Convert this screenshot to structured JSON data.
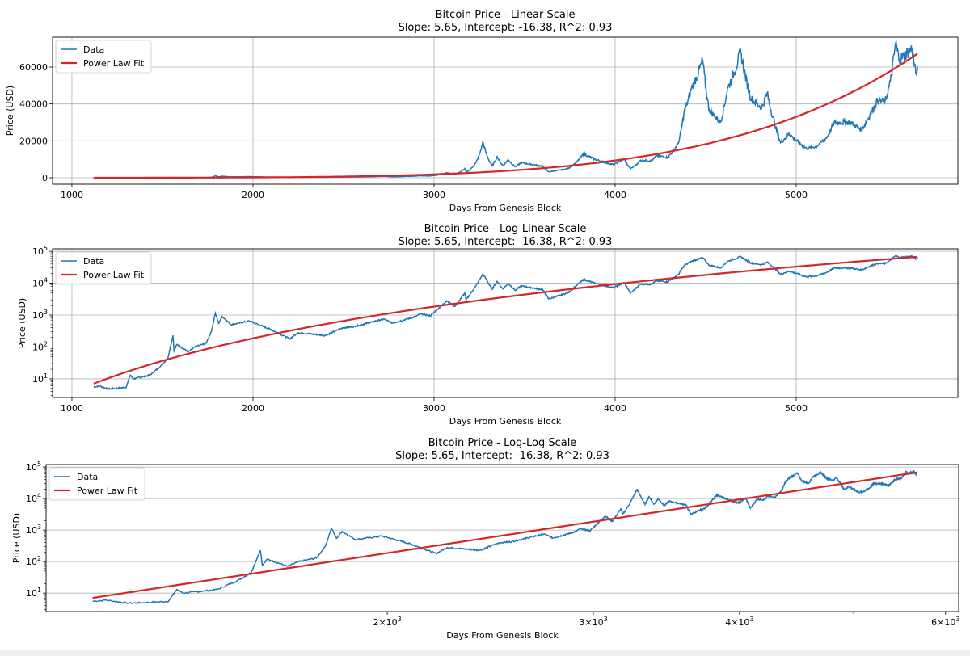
{
  "colors": {
    "data": "#1f77b4",
    "fit": "#d62728",
    "grid": "#b0b0b0"
  },
  "chart_data": {
    "type": "line",
    "fit": {
      "slope": 5.65,
      "intercept": -16.38,
      "r2": 0.93,
      "model": "log10(price) = slope*log10(days) + intercept"
    },
    "legend": [
      "Data",
      "Power Law Fit"
    ],
    "legend_placement": "top-left",
    "series_keypoints": {
      "name": "Data",
      "days": [
        1120,
        1150,
        1200,
        1245,
        1300,
        1322,
        1340,
        1430,
        1490,
        1530,
        1558,
        1564,
        1580,
        1644,
        1680,
        1740,
        1770,
        1792,
        1810,
        1830,
        1879,
        1980,
        2100,
        2202,
        2250,
        2400,
        2496,
        2555,
        2722,
        2770,
        2900,
        2924,
        2980,
        3070,
        3115,
        3170,
        3177,
        3230,
        3270,
        3321,
        3348,
        3380,
        3410,
        3450,
        3480,
        3600,
        3633,
        3740,
        3826,
        3890,
        3990,
        4050,
        4086,
        4140,
        4200,
        4230,
        4290,
        4350,
        4380,
        4420,
        4484,
        4519,
        4581,
        4620,
        4694,
        4750,
        4810,
        4840,
        4880,
        4914,
        4960,
        5058,
        5110,
        5170,
        5210,
        5300,
        5360,
        5407,
        5450,
        5490,
        5520,
        5549,
        5570,
        5640,
        5660,
        5670
      ],
      "price": [
        5.5,
        6,
        4.8,
        5,
        5.5,
        13,
        10,
        13,
        25,
        45,
        230,
        75,
        120,
        70,
        100,
        130,
        300,
        1150,
        550,
        900,
        500,
        650,
        350,
        180,
        280,
        230,
        400,
        430,
        750,
        560,
        900,
        1100,
        950,
        2800,
        1900,
        4900,
        3000,
        8000,
        19500,
        6500,
        11500,
        6600,
        9800,
        5900,
        8200,
        6300,
        3200,
        5000,
        13000,
        10000,
        7200,
        10300,
        4900,
        9500,
        9200,
        12000,
        11000,
        19000,
        35000,
        48000,
        63500,
        37000,
        30000,
        48000,
        68000,
        43000,
        38000,
        46000,
        30000,
        19000,
        24000,
        15800,
        17000,
        22000,
        30000,
        30000,
        26000,
        34000,
        42000,
        41000,
        52000,
        73000,
        64000,
        70000,
        57000,
        58000
      ]
    },
    "subplots": [
      {
        "title": "Bitcoin Price - Linear Scale",
        "subtitle": "Slope: 5.65, Intercept: -16.38, R^2: 0.93",
        "xlabel": "Days From Genesis Block",
        "ylabel": "Price (USD)",
        "xscale": "linear",
        "yscale": "linear",
        "xlim": [
          893,
          5893
        ],
        "ylim": [
          -3500,
          76200
        ],
        "xticks": [
          1000,
          2000,
          3000,
          4000,
          5000
        ],
        "xticklabels": [
          "1000",
          "2000",
          "3000",
          "4000",
          "5000"
        ],
        "yticks": [
          0,
          20000,
          40000,
          60000
        ],
        "yticklabels": [
          "0",
          "20000",
          "40000",
          "60000"
        ],
        "grid": "both"
      },
      {
        "title": "Bitcoin Price - Log-Linear Scale",
        "subtitle": "Slope: 5.65, Intercept: -16.38, R^2: 0.93",
        "xlabel": "Days From Genesis Block",
        "ylabel": "Price (USD)",
        "xscale": "linear",
        "yscale": "log",
        "xlim": [
          893,
          5893
        ],
        "ylim": [
          2.6,
          120000
        ],
        "xticks": [
          1000,
          2000,
          3000,
          4000,
          5000
        ],
        "xticklabels": [
          "1000",
          "2000",
          "3000",
          "4000",
          "5000"
        ],
        "yticks": [
          10,
          100,
          1000,
          10000,
          100000
        ],
        "yticklabels": [
          "10^1",
          "10^2",
          "10^3",
          "10^4",
          "10^5"
        ],
        "grid": "both"
      },
      {
        "title": "Bitcoin Price - Log-Log Scale",
        "subtitle": "Slope: 5.65, Intercept: -16.38, R^2: 0.93",
        "xlabel": "Days From Genesis Block",
        "ylabel": "Price (USD)",
        "xscale": "log",
        "yscale": "log",
        "xlim": [
          1022,
          6157
        ],
        "ylim": [
          2.6,
          120000
        ],
        "xticks": [
          2000,
          3000,
          4000,
          6000
        ],
        "xticklabels": [
          "2×10^3",
          "3×10^3",
          "4×10^3",
          "6×10^3"
        ],
        "xminor_unlabeled": [
          5000
        ],
        "yticks": [
          10,
          100,
          1000,
          10000,
          100000
        ],
        "yticklabels": [
          "10^1",
          "10^2",
          "10^3",
          "10^4",
          "10^5"
        ],
        "grid": "y"
      }
    ]
  }
}
